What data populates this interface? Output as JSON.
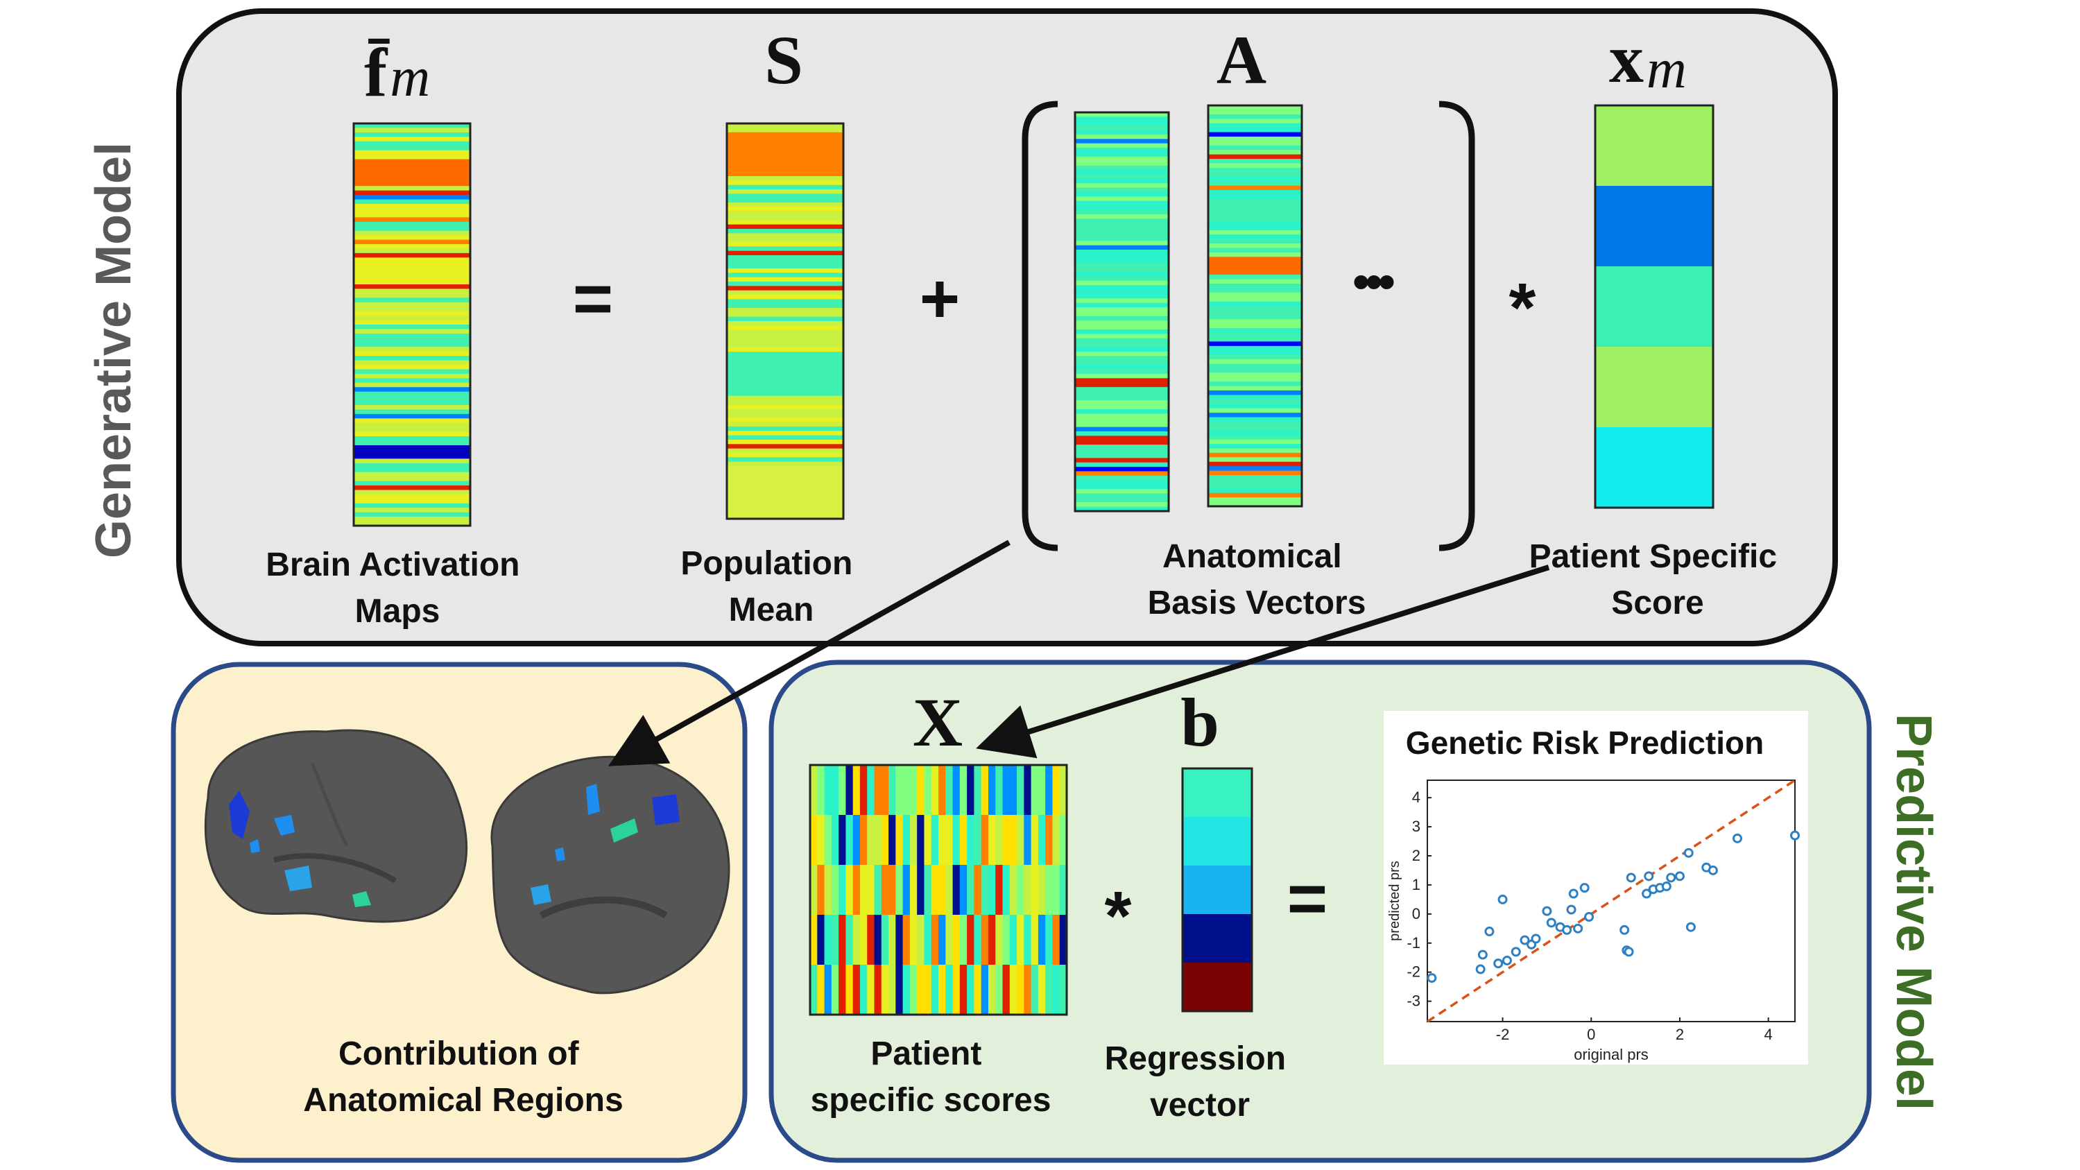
{
  "generative": {
    "side_label": "Generative Model",
    "sym_f": "f̄",
    "sym_f_sub": "m",
    "sym_s": "S",
    "sym_a": "A",
    "sym_x": "x",
    "sym_x_sub": "m",
    "op_equals": "=",
    "op_plus": "+",
    "op_star": "*",
    "ellipsis": "•••",
    "label_brain": [
      "Brain Activation",
      "Maps"
    ],
    "label_pop": [
      "Population",
      "Mean"
    ],
    "label_basis": [
      "Anatomical",
      "Basis Vectors"
    ],
    "label_patient": [
      "Patient Specific",
      "Score"
    ],
    "score_colors": [
      "#9ef060",
      "#0077e8",
      "#3cf0b4",
      "#9ef060",
      "#12ecec"
    ]
  },
  "anatomy": {
    "label": [
      "Contribution of",
      "Anatomical Regions"
    ]
  },
  "predictive": {
    "side_label": "Predictive Model",
    "sym_X": "X",
    "sym_b": "b",
    "op_star": "*",
    "op_equals": "=",
    "label_scores": [
      "Patient",
      "specific scores"
    ],
    "label_regression": [
      "Regression",
      "vector"
    ],
    "regression_colors": [
      "#38f2c0",
      "#22e6e4",
      "#18b4f0",
      "#00108c",
      "#7a0404"
    ]
  },
  "chart_data": {
    "type": "scatter",
    "title": "Genetic Risk Prediction",
    "xlabel": "original prs",
    "ylabel": "predicted prs",
    "xlim": [
      -3.7,
      4.6
    ],
    "ylim": [
      -3.7,
      4.6
    ],
    "xticks": [
      "-2",
      "0",
      "2",
      "4"
    ],
    "xtick_values": [
      -2,
      0,
      2,
      4
    ],
    "yticks": [
      "4",
      "3",
      "2",
      "1",
      "0",
      "-1",
      "-2",
      "-3"
    ],
    "ytick_values": [
      4,
      3,
      2,
      1,
      0,
      -1,
      -2,
      -3
    ],
    "reference_line": "y = x",
    "point_color": "#2f7fc1",
    "line_color": "#d95319",
    "x": [
      -3.6,
      -2.3,
      -2.0,
      -2.5,
      -2.45,
      -2.1,
      -1.9,
      -1.7,
      -1.5,
      -1.35,
      -1.25,
      -1.0,
      -0.9,
      -0.7,
      -0.55,
      -0.45,
      -0.4,
      -0.3,
      -0.15,
      -0.05,
      0.75,
      0.8,
      0.85,
      0.9,
      1.25,
      1.3,
      1.4,
      1.55,
      1.7,
      1.8,
      2.0,
      2.2,
      2.25,
      2.6,
      2.75,
      3.3,
      4.6
    ],
    "y": [
      -2.2,
      -0.6,
      0.5,
      -1.9,
      -1.4,
      -1.7,
      -1.6,
      -1.3,
      -0.9,
      -1.05,
      -0.85,
      0.1,
      -0.3,
      -0.45,
      -0.55,
      0.15,
      0.7,
      -0.5,
      0.9,
      -0.1,
      -0.55,
      -1.25,
      -1.3,
      1.25,
      0.7,
      1.3,
      0.85,
      0.9,
      0.95,
      1.25,
      1.3,
      2.1,
      -0.45,
      1.6,
      1.5,
      2.6,
      2.7
    ]
  }
}
